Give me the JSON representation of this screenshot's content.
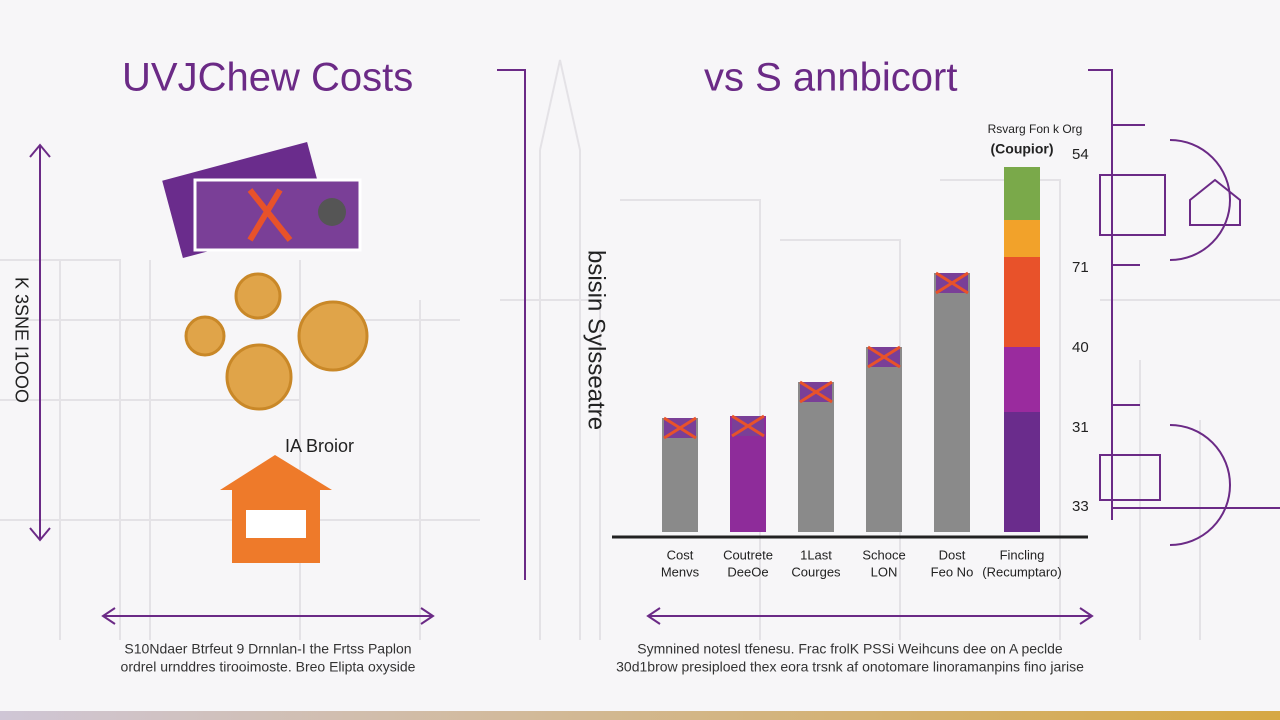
{
  "header": {
    "left_title": "UVJChew Costs",
    "right_title": "vs S annbicort",
    "side_text": "K 3SNE I1OOO",
    "house_label": "IA Broior"
  },
  "chart_data": {
    "type": "bar",
    "y_label": "bsisin Sylsseatre",
    "key_title": "Rsvarg Fon k Org",
    "key_subtitle": "(Coupior)",
    "categories": [
      [
        "Cost",
        "Menvs"
      ],
      [
        "Coutrete",
        "DeeOe"
      ],
      [
        "1Last",
        "Courges"
      ],
      [
        "Schoce",
        "LON"
      ],
      [
        "Dost",
        "Feo No"
      ],
      [
        "Fincling",
        "(Recumptaro)"
      ]
    ],
    "values": [
      114,
      116,
      150,
      185,
      259,
      null
    ],
    "colors": [
      "#8a8a8a",
      "#8e2c9a",
      "#8a8a8a",
      "#8a8a8a",
      "#8a8a8a",
      null
    ],
    "segments": [
      {
        "value": 120,
        "color": "#6a2c8c"
      },
      {
        "value": 65,
        "color": "#9a2b9e"
      },
      {
        "value": 90,
        "color": "#e8522a"
      },
      {
        "value": 37,
        "color": "#f2a22a"
      },
      {
        "value": 53,
        "color": "#7aa94a"
      }
    ],
    "ylim": [
      0,
      400
    ],
    "side_numbers": [
      54,
      71,
      40,
      31,
      33
    ]
  },
  "footer": {
    "left": [
      "S10Ndaer Btrfeut 9 Drnnlan-I the Frtss Paplon",
      "ordrel urnddres tirooimoste. Breo Elipta oxyside"
    ],
    "right": [
      "Symnined notesl tfenesu. Frac frolK PSSi Weihcuns dee on A peclde",
      "30d1brow presiploed thex eora trsnk af onotomare linoramanpins fino jarise"
    ]
  }
}
